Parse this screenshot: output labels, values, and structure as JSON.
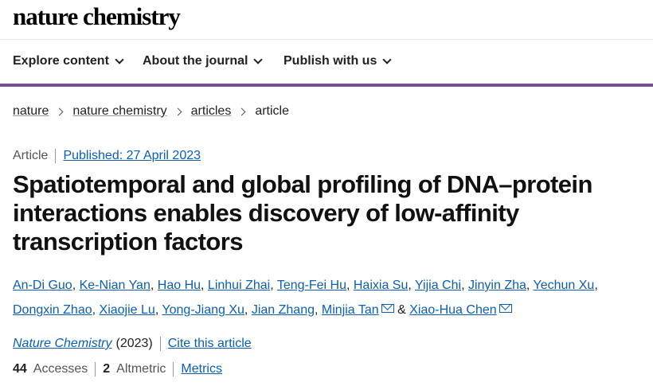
{
  "site": {
    "logo": "nature chemistry"
  },
  "nav": [
    {
      "label": "Explore content"
    },
    {
      "label": "About the journal"
    },
    {
      "label": "Publish with us"
    }
  ],
  "breadcrumb": [
    {
      "label": "nature"
    },
    {
      "label": "nature chemistry"
    },
    {
      "label": "articles"
    },
    {
      "label": "article"
    }
  ],
  "article": {
    "type": "Article",
    "published": "Published: 27 April 2023",
    "title": "Spatiotemporal and global profiling of DNA–protein interactions enables discovery of low-affinity transcription factors",
    "authors": [
      "An-Di Guo",
      "Ke-Nian Yan",
      "Hao Hu",
      "Linhui Zhai",
      "Teng-Fei Hu",
      "Haixia Su",
      "Yijia Chi",
      "Jinyin Zha",
      "Yechun Xu",
      "Dongxin Zhao",
      "Xiaojie Lu",
      "Yong-Jiang Xu",
      "Jian Zhang",
      "Minjia Tan",
      "Xiao-Hua Chen"
    ],
    "author_separator": ",",
    "author_conjunction": "&",
    "journal": "Nature Chemistry",
    "year": "(2023)",
    "cite_label": "Cite this article"
  },
  "metrics": {
    "accesses_count": "44",
    "accesses_label": "Accesses",
    "altmetric_count": "2",
    "altmetric_label": "Altmetric",
    "metrics_link": "Metrics"
  },
  "colors": {
    "accent": "#7a4f9a",
    "link": "#0b5fb4"
  },
  "icons": {
    "nav_chevron": "chevron-down-icon",
    "breadcrumb_separator": "chevron-right-icon",
    "author_contact": "mail-icon"
  }
}
